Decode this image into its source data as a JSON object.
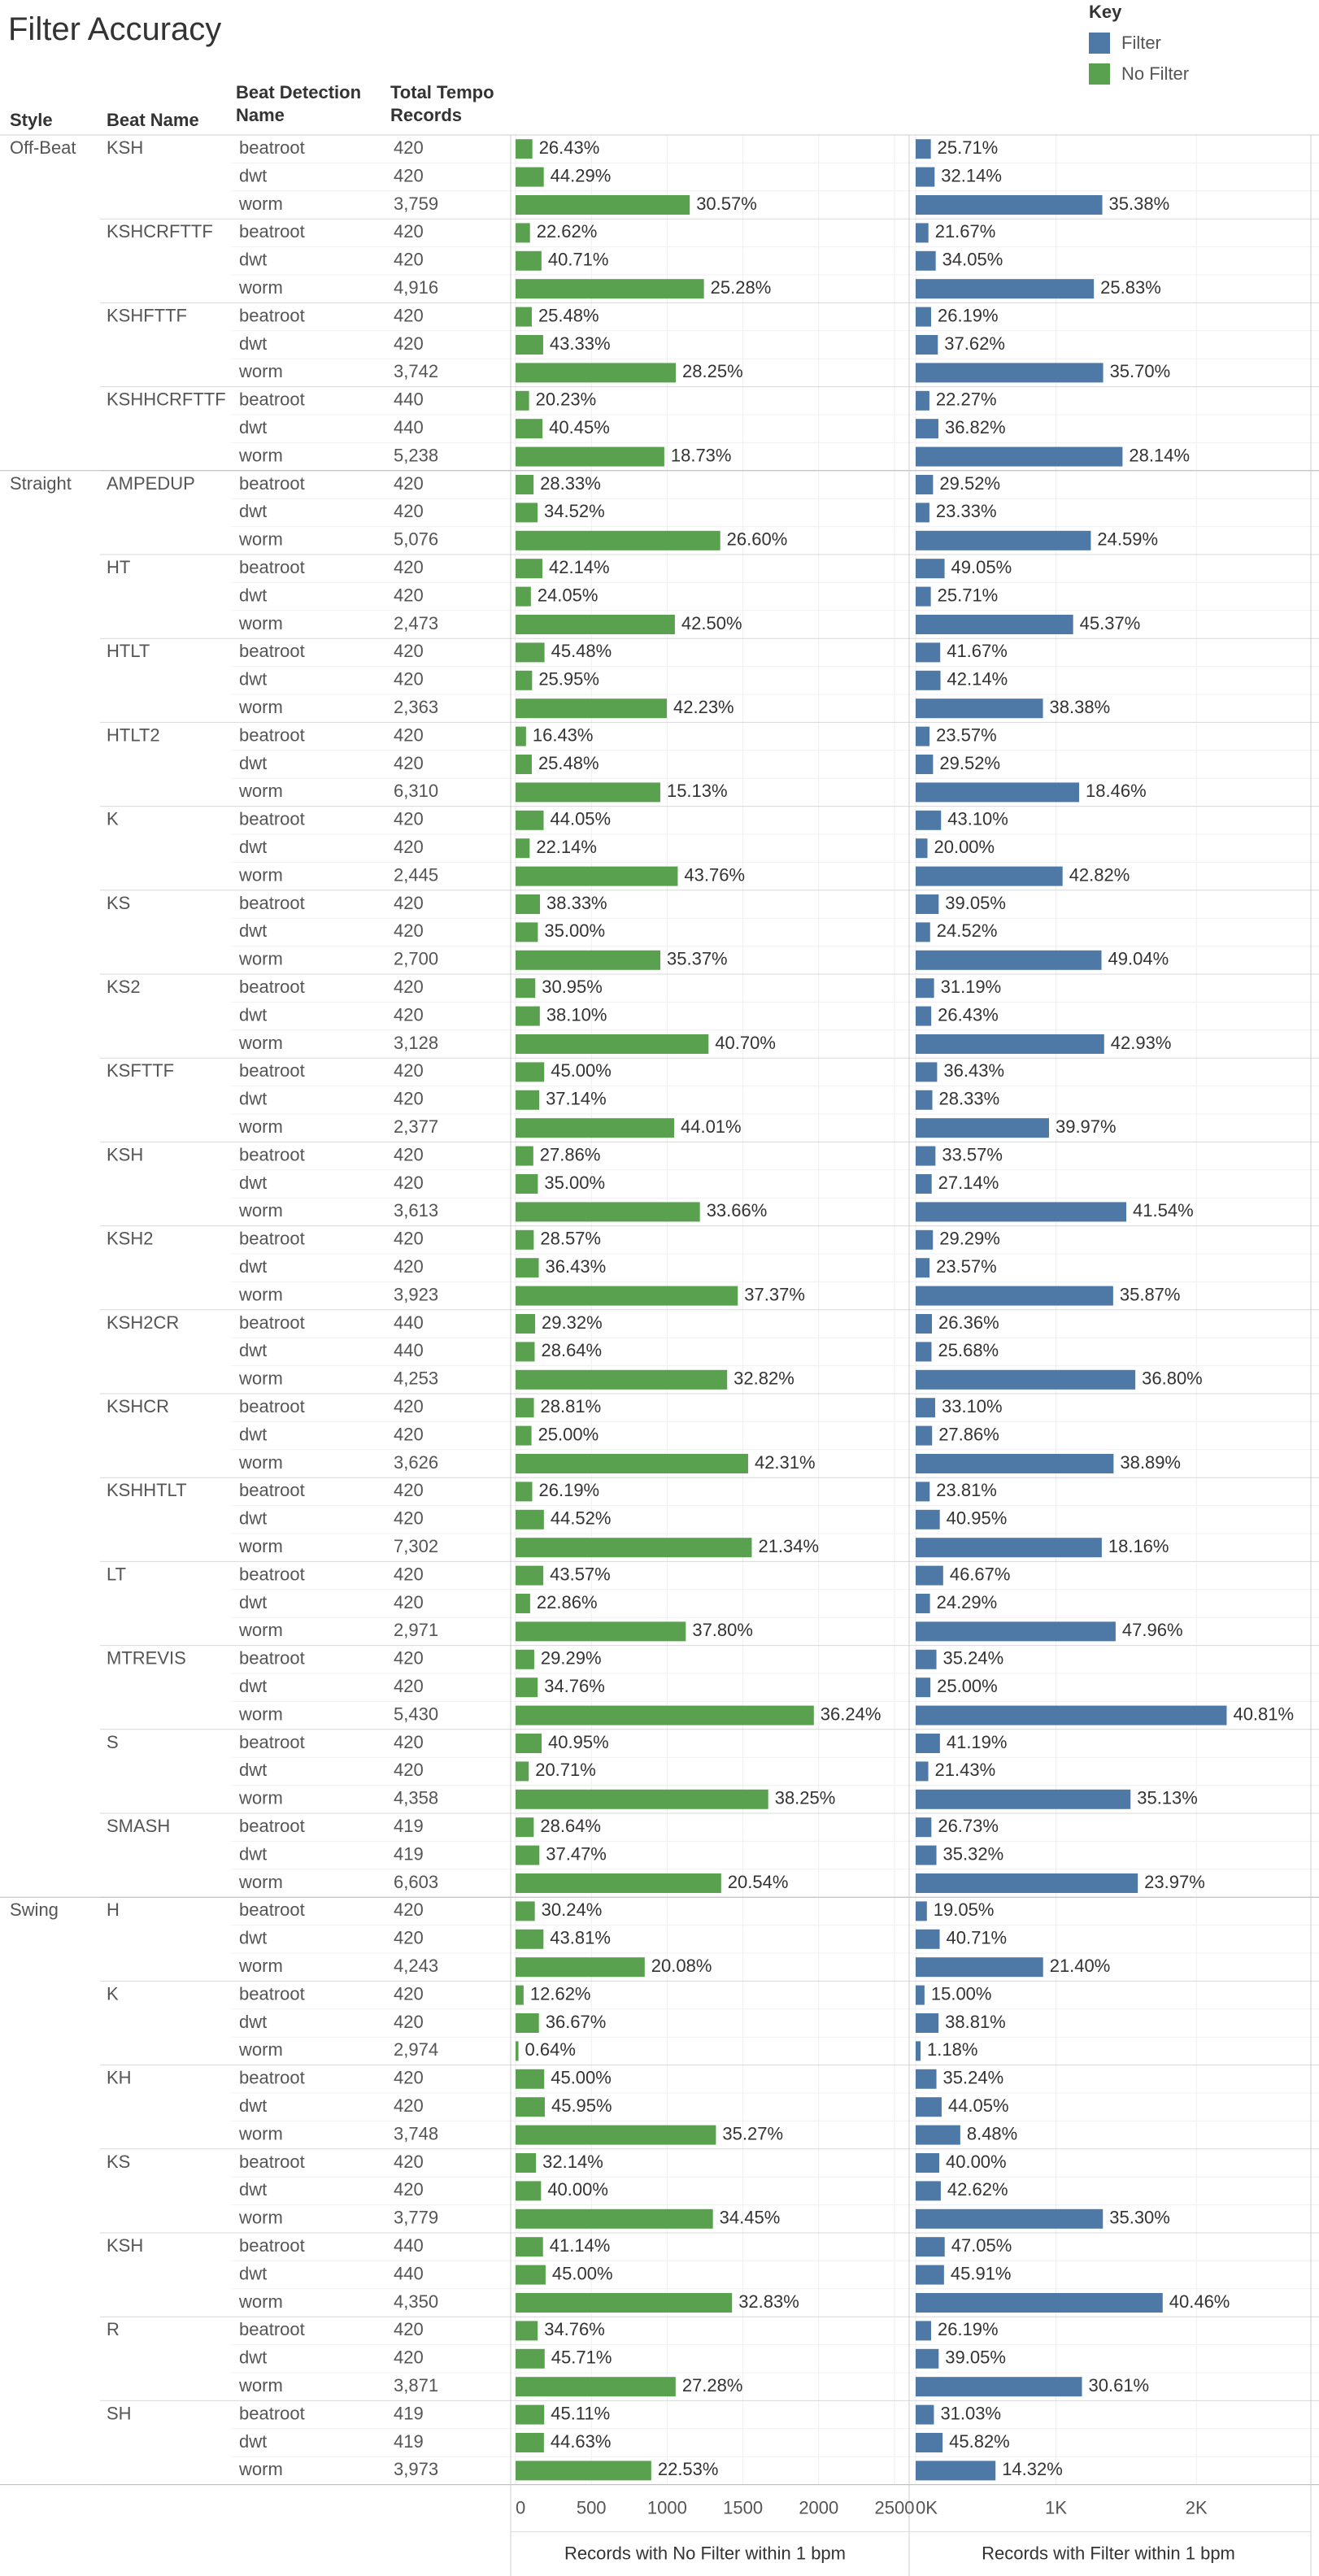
{
  "title": "Filter Accuracy",
  "legend": {
    "title": "Key",
    "items": [
      {
        "label": "Filter",
        "color": "#4e79a7"
      },
      {
        "label": "No Filter",
        "color": "#59a14f"
      }
    ]
  },
  "headers": {
    "style": "Style",
    "beat_name": "Beat Name",
    "detection": "Beat Detection Name",
    "total": "Total Tempo Records"
  },
  "axes": {
    "no_filter": {
      "label": "Records with No Filter within 1 bpm",
      "ticks": [
        0,
        500,
        1000,
        1500,
        2000,
        2500
      ],
      "tick_labels": [
        "0",
        "500",
        "1000",
        "1500",
        "2000",
        "2500"
      ],
      "range": [
        0,
        2500
      ]
    },
    "filter": {
      "label": "Records with Filter within 1 bpm",
      "ticks": [
        0,
        1000,
        2000
      ],
      "tick_labels": [
        "0K",
        "1K",
        "2K"
      ],
      "range": [
        0,
        2700
      ]
    }
  },
  "chart_data": {
    "type": "bar",
    "title": "Filter Accuracy",
    "columns": [
      "Style",
      "Beat Name",
      "Beat Detection Name",
      "Total Tempo Records",
      "No Filter %",
      "Filter %"
    ],
    "series": [
      {
        "name": "No Filter",
        "color": "#59a14f",
        "value": "records within 1 bpm (count = total x pct)"
      },
      {
        "name": "Filter",
        "color": "#4e79a7",
        "value": "records within 1 bpm (count = total x pct)"
      }
    ],
    "groups": [
      {
        "style": "Off-Beat",
        "beats": [
          {
            "name": "KSH",
            "rows": [
              [
                "beatroot",
                "420",
                "26.43%",
                "25.71%"
              ],
              [
                "dwt",
                "420",
                "44.29%",
                "32.14%"
              ],
              [
                "worm",
                "3,759",
                "30.57%",
                "35.38%"
              ]
            ]
          },
          {
            "name": "KSHCRFTTF",
            "rows": [
              [
                "beatroot",
                "420",
                "22.62%",
                "21.67%"
              ],
              [
                "dwt",
                "420",
                "40.71%",
                "34.05%"
              ],
              [
                "worm",
                "4,916",
                "25.28%",
                "25.83%"
              ]
            ]
          },
          {
            "name": "KSHFTTF",
            "rows": [
              [
                "beatroot",
                "420",
                "25.48%",
                "26.19%"
              ],
              [
                "dwt",
                "420",
                "43.33%",
                "37.62%"
              ],
              [
                "worm",
                "3,742",
                "28.25%",
                "35.70%"
              ]
            ]
          },
          {
            "name": "KSHHCRFTTF",
            "rows": [
              [
                "beatroot",
                "440",
                "20.23%",
                "22.27%"
              ],
              [
                "dwt",
                "440",
                "40.45%",
                "36.82%"
              ],
              [
                "worm",
                "5,238",
                "18.73%",
                "28.14%"
              ]
            ]
          }
        ]
      },
      {
        "style": "Straight",
        "beats": [
          {
            "name": "AMPEDUP",
            "rows": [
              [
                "beatroot",
                "420",
                "28.33%",
                "29.52%"
              ],
              [
                "dwt",
                "420",
                "34.52%",
                "23.33%"
              ],
              [
                "worm",
                "5,076",
                "26.60%",
                "24.59%"
              ]
            ]
          },
          {
            "name": "HT",
            "rows": [
              [
                "beatroot",
                "420",
                "42.14%",
                "49.05%"
              ],
              [
                "dwt",
                "420",
                "24.05%",
                "25.71%"
              ],
              [
                "worm",
                "2,473",
                "42.50%",
                "45.37%"
              ]
            ]
          },
          {
            "name": "HTLT",
            "rows": [
              [
                "beatroot",
                "420",
                "45.48%",
                "41.67%"
              ],
              [
                "dwt",
                "420",
                "25.95%",
                "42.14%"
              ],
              [
                "worm",
                "2,363",
                "42.23%",
                "38.38%"
              ]
            ]
          },
          {
            "name": "HTLT2",
            "rows": [
              [
                "beatroot",
                "420",
                "16.43%",
                "23.57%"
              ],
              [
                "dwt",
                "420",
                "25.48%",
                "29.52%"
              ],
              [
                "worm",
                "6,310",
                "15.13%",
                "18.46%"
              ]
            ]
          },
          {
            "name": "K",
            "rows": [
              [
                "beatroot",
                "420",
                "44.05%",
                "43.10%"
              ],
              [
                "dwt",
                "420",
                "22.14%",
                "20.00%"
              ],
              [
                "worm",
                "2,445",
                "43.76%",
                "42.82%"
              ]
            ]
          },
          {
            "name": "KS",
            "rows": [
              [
                "beatroot",
                "420",
                "38.33%",
                "39.05%"
              ],
              [
                "dwt",
                "420",
                "35.00%",
                "24.52%"
              ],
              [
                "worm",
                "2,700",
                "35.37%",
                "49.04%"
              ]
            ]
          },
          {
            "name": "KS2",
            "rows": [
              [
                "beatroot",
                "420",
                "30.95%",
                "31.19%"
              ],
              [
                "dwt",
                "420",
                "38.10%",
                "26.43%"
              ],
              [
                "worm",
                "3,128",
                "40.70%",
                "42.93%"
              ]
            ]
          },
          {
            "name": "KSFTTF",
            "rows": [
              [
                "beatroot",
                "420",
                "45.00%",
                "36.43%"
              ],
              [
                "dwt",
                "420",
                "37.14%",
                "28.33%"
              ],
              [
                "worm",
                "2,377",
                "44.01%",
                "39.97%"
              ]
            ]
          },
          {
            "name": "KSH",
            "rows": [
              [
                "beatroot",
                "420",
                "27.86%",
                "33.57%"
              ],
              [
                "dwt",
                "420",
                "35.00%",
                "27.14%"
              ],
              [
                "worm",
                "3,613",
                "33.66%",
                "41.54%"
              ]
            ]
          },
          {
            "name": "KSH2",
            "rows": [
              [
                "beatroot",
                "420",
                "28.57%",
                "29.29%"
              ],
              [
                "dwt",
                "420",
                "36.43%",
                "23.57%"
              ],
              [
                "worm",
                "3,923",
                "37.37%",
                "35.87%"
              ]
            ]
          },
          {
            "name": "KSH2CR",
            "rows": [
              [
                "beatroot",
                "440",
                "29.32%",
                "26.36%"
              ],
              [
                "dwt",
                "440",
                "28.64%",
                "25.68%"
              ],
              [
                "worm",
                "4,253",
                "32.82%",
                "36.80%"
              ]
            ]
          },
          {
            "name": "KSHCR",
            "rows": [
              [
                "beatroot",
                "420",
                "28.81%",
                "33.10%"
              ],
              [
                "dwt",
                "420",
                "25.00%",
                "27.86%"
              ],
              [
                "worm",
                "3,626",
                "42.31%",
                "38.89%"
              ]
            ]
          },
          {
            "name": "KSHHTLT",
            "rows": [
              [
                "beatroot",
                "420",
                "26.19%",
                "23.81%"
              ],
              [
                "dwt",
                "420",
                "44.52%",
                "40.95%"
              ],
              [
                "worm",
                "7,302",
                "21.34%",
                "18.16%"
              ]
            ]
          },
          {
            "name": "LT",
            "rows": [
              [
                "beatroot",
                "420",
                "43.57%",
                "46.67%"
              ],
              [
                "dwt",
                "420",
                "22.86%",
                "24.29%"
              ],
              [
                "worm",
                "2,971",
                "37.80%",
                "47.96%"
              ]
            ]
          },
          {
            "name": "MTREVIS",
            "rows": [
              [
                "beatroot",
                "420",
                "29.29%",
                "35.24%"
              ],
              [
                "dwt",
                "420",
                "34.76%",
                "25.00%"
              ],
              [
                "worm",
                "5,430",
                "36.24%",
                "40.81%"
              ]
            ]
          },
          {
            "name": "S",
            "rows": [
              [
                "beatroot",
                "420",
                "40.95%",
                "41.19%"
              ],
              [
                "dwt",
                "420",
                "20.71%",
                "21.43%"
              ],
              [
                "worm",
                "4,358",
                "38.25%",
                "35.13%"
              ]
            ]
          },
          {
            "name": "SMASH",
            "rows": [
              [
                "beatroot",
                "419",
                "28.64%",
                "26.73%"
              ],
              [
                "dwt",
                "419",
                "37.47%",
                "35.32%"
              ],
              [
                "worm",
                "6,603",
                "20.54%",
                "23.97%"
              ]
            ]
          }
        ]
      },
      {
        "style": "Swing",
        "beats": [
          {
            "name": "H",
            "rows": [
              [
                "beatroot",
                "420",
                "30.24%",
                "19.05%"
              ],
              [
                "dwt",
                "420",
                "43.81%",
                "40.71%"
              ],
              [
                "worm",
                "4,243",
                "20.08%",
                "21.40%"
              ]
            ]
          },
          {
            "name": "K",
            "rows": [
              [
                "beatroot",
                "420",
                "12.62%",
                "15.00%"
              ],
              [
                "dwt",
                "420",
                "36.67%",
                "38.81%"
              ],
              [
                "worm",
                "2,974",
                "0.64%",
                "1.18%"
              ]
            ]
          },
          {
            "name": "KH",
            "rows": [
              [
                "beatroot",
                "420",
                "45.00%",
                "35.24%"
              ],
              [
                "dwt",
                "420",
                "45.95%",
                "44.05%"
              ],
              [
                "worm",
                "3,748",
                "35.27%",
                "8.48%"
              ]
            ]
          },
          {
            "name": "KS",
            "rows": [
              [
                "beatroot",
                "420",
                "32.14%",
                "40.00%"
              ],
              [
                "dwt",
                "420",
                "40.00%",
                "42.62%"
              ],
              [
                "worm",
                "3,779",
                "34.45%",
                "35.30%"
              ]
            ]
          },
          {
            "name": "KSH",
            "rows": [
              [
                "beatroot",
                "440",
                "41.14%",
                "47.05%"
              ],
              [
                "dwt",
                "440",
                "45.00%",
                "45.91%"
              ],
              [
                "worm",
                "4,350",
                "32.83%",
                "40.46%"
              ]
            ]
          },
          {
            "name": "R",
            "rows": [
              [
                "beatroot",
                "420",
                "34.76%",
                "26.19%"
              ],
              [
                "dwt",
                "420",
                "45.71%",
                "39.05%"
              ],
              [
                "worm",
                "3,871",
                "27.28%",
                "30.61%"
              ]
            ]
          },
          {
            "name": "SH",
            "rows": [
              [
                "beatroot",
                "419",
                "45.11%",
                "31.03%"
              ],
              [
                "dwt",
                "419",
                "44.63%",
                "45.82%"
              ],
              [
                "worm",
                "3,973",
                "22.53%",
                "14.32%"
              ]
            ]
          }
        ]
      }
    ]
  }
}
